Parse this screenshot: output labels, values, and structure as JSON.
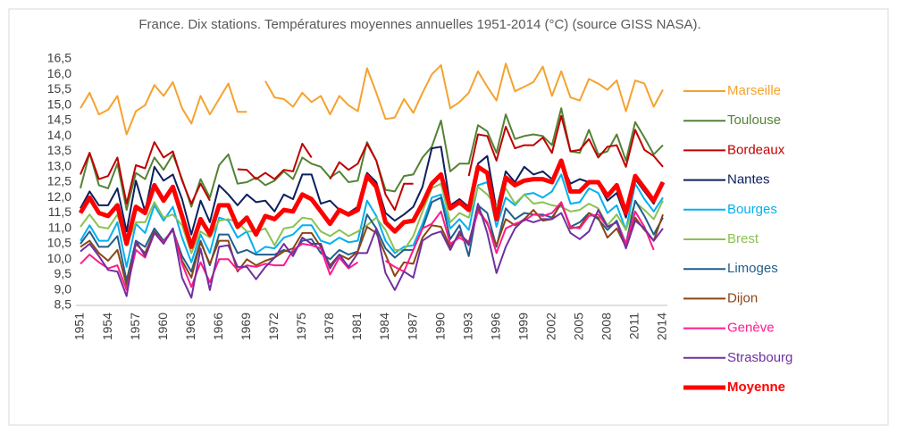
{
  "chart_data": {
    "type": "line",
    "title": "France. Dix stations. Températures moyennes annuelles 1951-2014  (°C) (source GISS NASA).",
    "categories": [
      "1951",
      null,
      null,
      "1954",
      null,
      null,
      "1957",
      null,
      null,
      "1960",
      null,
      null,
      "1963",
      null,
      null,
      "1966",
      null,
      null,
      "1969",
      null,
      null,
      "1972",
      null,
      null,
      "1975",
      null,
      null,
      "1978",
      null,
      null,
      "1981",
      null,
      null,
      "1984",
      null,
      null,
      "1987",
      null,
      null,
      "1990",
      null,
      null,
      "1993",
      null,
      null,
      "1996",
      null,
      null,
      "1999",
      null,
      null,
      "2002",
      null,
      null,
      "2005",
      null,
      null,
      "2008",
      null,
      null,
      "2011",
      null,
      null,
      "2014"
    ],
    "ylim": [
      8.5,
      16.5
    ],
    "yticks": [
      {
        "value": 8.5,
        "label": "8,5"
      },
      {
        "value": 9,
        "label": "9,0"
      },
      {
        "value": 9.5,
        "label": "9,5"
      },
      {
        "value": 10,
        "label": "10,0"
      },
      {
        "value": 10.5,
        "label": "10,5"
      },
      {
        "value": 11,
        "label": "11,0"
      },
      {
        "value": 11.5,
        "label": "11,5"
      },
      {
        "value": 12,
        "label": "12,0"
      },
      {
        "value": 12.5,
        "label": "12,5"
      },
      {
        "value": 13,
        "label": "13,0"
      },
      {
        "value": 13.5,
        "label": "13,5"
      },
      {
        "value": 14,
        "label": "14,0"
      },
      {
        "value": 14.5,
        "label": "14,5"
      },
      {
        "value": 15,
        "label": "15,0"
      },
      {
        "value": 15.5,
        "label": "15,5"
      },
      {
        "value": 16,
        "label": "16,0"
      },
      {
        "value": 16.5,
        "label": "16,5"
      }
    ],
    "grid": false,
    "legend": "right",
    "series": [
      {
        "name": "Marseille",
        "color": "#f5a22f",
        "width": 2,
        "values": [
          14.9,
          15.4,
          14.7,
          14.85,
          15.3,
          14.05,
          14.8,
          15.0,
          15.65,
          15.3,
          15.75,
          14.9,
          14.4,
          15.3,
          14.7,
          15.2,
          15.7,
          14.78,
          14.78,
          null,
          15.78,
          15.25,
          15.2,
          14.95,
          15.4,
          15.1,
          15.3,
          14.7,
          15.3,
          15.0,
          14.8,
          16.2,
          15.4,
          14.55,
          14.6,
          15.2,
          14.75,
          15.4,
          16.0,
          16.3,
          14.9,
          15.1,
          15.4,
          16.1,
          15.6,
          15.15,
          16.35,
          15.45,
          15.6,
          15.75,
          16.25,
          15.3,
          16.1,
          15.25,
          15.15,
          15.85,
          15.7,
          15.5,
          15.8,
          14.8,
          15.8,
          15.7,
          14.95,
          15.5
        ]
      },
      {
        "name": "Toulouse",
        "color": "#548235",
        "width": 2,
        "values": [
          12.3,
          13.45,
          12.4,
          12.3,
          13.1,
          11.6,
          12.8,
          12.6,
          13.3,
          12.9,
          13.4,
          12.6,
          11.7,
          12.6,
          12.0,
          13.05,
          13.4,
          12.45,
          12.5,
          12.65,
          12.4,
          12.55,
          12.85,
          12.6,
          13.3,
          13.1,
          13.0,
          12.65,
          12.85,
          12.5,
          12.55,
          13.8,
          13.2,
          12.25,
          12.2,
          12.7,
          12.75,
          13.3,
          13.65,
          14.5,
          12.85,
          13.1,
          13.1,
          14.35,
          14.15,
          13.45,
          14.7,
          13.9,
          14.0,
          14.05,
          14.0,
          13.7,
          14.9,
          13.5,
          13.45,
          14.2,
          13.4,
          13.5,
          14.05,
          13.2,
          14.45,
          13.95,
          13.4,
          13.7
        ]
      },
      {
        "name": "Bordeaux",
        "color": "#c00000",
        "width": 2,
        "values": [
          12.75,
          13.45,
          12.6,
          12.7,
          13.3,
          11.8,
          13.05,
          12.95,
          13.8,
          13.3,
          13.5,
          12.55,
          11.8,
          12.45,
          11.9,
          null,
          null,
          12.92,
          12.9,
          12.6,
          12.8,
          12.6,
          12.9,
          12.85,
          13.75,
          13.3,
          null,
          12.6,
          13.15,
          12.9,
          13.1,
          13.75,
          13.2,
          12.1,
          11.6,
          12.45,
          12.45,
          null,
          null,
          null,
          null,
          null,
          12.7,
          14.05,
          14.0,
          13.2,
          14.3,
          13.6,
          13.7,
          13.7,
          13.95,
          13.45,
          14.65,
          13.5,
          13.55,
          13.9,
          13.3,
          13.65,
          13.7,
          13.0,
          14.2,
          13.55,
          13.35,
          13.0
        ]
      },
      {
        "name": "Nantes",
        "color": "#0d1f5e",
        "width": 2,
        "values": [
          11.65,
          12.2,
          11.75,
          11.75,
          12.3,
          10.9,
          12.55,
          11.55,
          13.0,
          12.55,
          12.75,
          11.95,
          10.8,
          11.9,
          11.2,
          12.4,
          12.1,
          11.75,
          12.1,
          11.85,
          11.9,
          11.55,
          12.1,
          11.95,
          12.75,
          12.75,
          11.8,
          11.9,
          11.6,
          11.5,
          11.7,
          12.8,
          12.5,
          11.5,
          11.25,
          11.45,
          11.7,
          12.35,
          13.6,
          13.65,
          11.75,
          11.95,
          11.7,
          13.1,
          13.35,
          11.6,
          12.85,
          12.5,
          13.0,
          12.75,
          12.85,
          12.6,
          13.15,
          12.45,
          12.6,
          12.5,
          12.45,
          11.9,
          12.15,
          11.35,
          12.6,
          12.2,
          11.8,
          12.5
        ]
      },
      {
        "name": "Bourges",
        "color": "#00b0f0",
        "width": 2,
        "values": [
          10.6,
          11.1,
          10.6,
          10.6,
          11.2,
          9.75,
          11.15,
          10.85,
          11.75,
          11.25,
          11.7,
          10.7,
          9.9,
          10.8,
          10.2,
          11.35,
          11.25,
          10.7,
          10.9,
          10.2,
          10.4,
          10.35,
          10.7,
          10.8,
          11.1,
          11.1,
          10.6,
          10.5,
          10.7,
          10.55,
          10.6,
          11.9,
          11.4,
          10.6,
          10.2,
          10.4,
          10.45,
          11.15,
          12.0,
          12.1,
          11.0,
          11.3,
          10.95,
          12.4,
          12.5,
          11.05,
          12.0,
          11.75,
          12.1,
          12.15,
          12.0,
          12.2,
          12.75,
          11.8,
          11.85,
          12.3,
          12.15,
          11.5,
          11.75,
          10.95,
          12.45,
          11.95,
          11.55,
          12.0
        ]
      },
      {
        "name": "Brest",
        "color": "#8cc152",
        "width": 2,
        "values": [
          11.05,
          11.45,
          11.05,
          11.0,
          11.45,
          10.45,
          11.2,
          11.2,
          11.85,
          11.35,
          11.45,
          11.1,
          10.2,
          10.9,
          10.7,
          11.25,
          11.3,
          11.2,
          10.9,
          10.9,
          11.0,
          10.45,
          11.0,
          11.05,
          11.35,
          11.3,
          10.9,
          10.75,
          10.95,
          10.75,
          10.9,
          11.1,
          11.35,
          10.95,
          10.3,
          10.3,
          10.75,
          11.55,
          12.3,
          12.45,
          11.2,
          11.5,
          11.35,
          12.35,
          12.1,
          11.7,
          12.3,
          11.8,
          12.1,
          11.8,
          11.85,
          11.75,
          11.7,
          11.55,
          11.6,
          11.8,
          11.65,
          11.1,
          11.45,
          10.95,
          11.85,
          11.6,
          11.3,
          11.9
        ]
      },
      {
        "name": "Limoges",
        "color": "#1f5f8b",
        "width": 2,
        "values": [
          10.5,
          10.9,
          10.4,
          10.4,
          10.75,
          9.3,
          10.6,
          10.4,
          11.0,
          10.6,
          10.95,
          10.1,
          9.6,
          10.6,
          9.8,
          10.8,
          10.8,
          10.2,
          10.3,
          10.15,
          10.15,
          10.15,
          10.3,
          10.2,
          10.6,
          10.65,
          10.2,
          10.0,
          10.3,
          10.15,
          10.25,
          11.45,
          11.0,
          10.35,
          10.05,
          10.3,
          10.3,
          11.0,
          11.85,
          12.0,
          10.65,
          11.1,
          10.1,
          11.75,
          11.5,
          10.4,
          11.65,
          11.3,
          11.5,
          11.45,
          11.45,
          11.35,
          11.8,
          11.05,
          11.2,
          11.5,
          11.3,
          10.95,
          11.25,
          10.5,
          11.9,
          11.4,
          10.8,
          11.35
        ]
      },
      {
        "name": "Dijon",
        "color": "#8b4513",
        "width": 2,
        "values": [
          10.4,
          10.6,
          10.2,
          9.95,
          10.3,
          9.15,
          10.5,
          10.2,
          10.9,
          10.55,
          10.95,
          9.95,
          9.4,
          10.55,
          9.85,
          10.6,
          10.6,
          9.6,
          10.0,
          9.8,
          9.95,
          10.05,
          10.25,
          10.35,
          10.85,
          10.85,
          10.4,
          9.8,
          10.15,
          10.0,
          10.25,
          11.05,
          10.85,
          10.15,
          9.45,
          9.9,
          9.85,
          10.7,
          11.1,
          11.05,
          10.4,
          10.8,
          10.55,
          11.65,
          11.15,
          10.45,
          11.3,
          11.1,
          11.3,
          11.6,
          11.25,
          11.3,
          11.85,
          11.0,
          11.05,
          11.5,
          11.35,
          10.7,
          11.0,
          10.4,
          11.35,
          10.95,
          10.6,
          11.45
        ]
      },
      {
        "name": "Genève",
        "color": "#ff1a8c",
        "width": 2,
        "values": [
          9.85,
          10.15,
          9.9,
          9.7,
          9.8,
          9.0,
          10.3,
          10.05,
          10.85,
          10.55,
          11.0,
          9.85,
          9.1,
          9.9,
          9.25,
          10.0,
          10.0,
          9.65,
          9.8,
          9.75,
          9.85,
          9.8,
          9.8,
          10.3,
          10.5,
          10.45,
          10.35,
          9.5,
          10.05,
          9.7,
          9.9,
          null,
          null,
          9.95,
          9.75,
          9.6,
          10.3,
          11.0,
          11.15,
          11.55,
          10.5,
          10.7,
          10.5,
          11.55,
          11.2,
          10.2,
          11.0,
          11.15,
          11.25,
          11.45,
          11.4,
          11.5,
          11.85,
          11.05,
          11.0,
          11.4,
          11.45,
          11.05,
          11.2,
          10.5,
          11.55,
          11.05,
          10.3,
          null
        ]
      },
      {
        "name": "Strasbourg",
        "color": "#7030a0",
        "width": 2,
        "values": [
          10.25,
          10.5,
          10.1,
          9.65,
          9.6,
          8.8,
          10.6,
          10.1,
          10.85,
          10.5,
          11.0,
          9.4,
          8.75,
          10.35,
          9.0,
          10.4,
          10.45,
          9.75,
          9.75,
          9.35,
          9.75,
          10.05,
          10.5,
          10.1,
          10.7,
          10.5,
          10.5,
          9.7,
          10.15,
          9.75,
          10.2,
          10.2,
          11.0,
          9.55,
          9.0,
          9.6,
          9.4,
          10.6,
          10.8,
          10.9,
          10.3,
          10.9,
          10.45,
          11.8,
          10.85,
          9.55,
          10.4,
          11.0,
          11.3,
          11.2,
          11.3,
          11.3,
          11.5,
          10.85,
          10.65,
          10.9,
          11.6,
          11.05,
          11.2,
          10.35,
          11.25,
          11.0,
          10.6,
          11.0
        ]
      },
      {
        "name": "Moyenne",
        "color": "#ff0000",
        "width": 5,
        "bold": true,
        "values": [
          11.5,
          12.0,
          11.5,
          11.4,
          11.75,
          10.5,
          11.7,
          11.5,
          12.4,
          11.9,
          12.35,
          11.4,
          10.4,
          11.3,
          10.8,
          11.75,
          11.75,
          11.05,
          11.35,
          10.8,
          11.4,
          11.3,
          11.6,
          11.55,
          12.1,
          11.95,
          11.55,
          11.15,
          11.6,
          11.45,
          11.6,
          12.7,
          12.35,
          11.2,
          10.9,
          11.2,
          11.25,
          11.8,
          12.45,
          12.75,
          11.65,
          11.85,
          11.6,
          13.0,
          12.8,
          11.3,
          12.65,
          12.4,
          12.55,
          12.6,
          12.6,
          12.5,
          13.2,
          12.2,
          12.2,
          12.5,
          12.5,
          12.05,
          12.4,
          11.5,
          12.7,
          12.3,
          11.9,
          12.5
        ]
      }
    ]
  }
}
